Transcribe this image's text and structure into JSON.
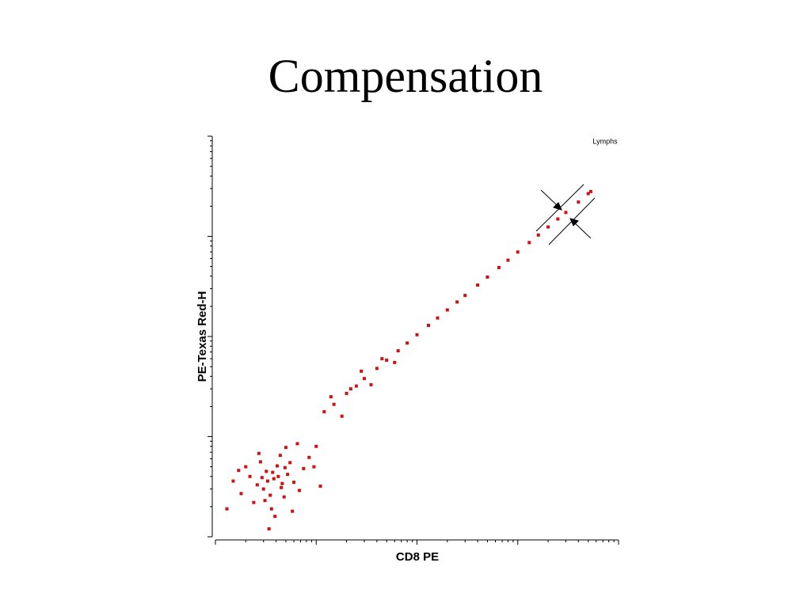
{
  "chart_data": {
    "type": "scatter",
    "title": "Compensation",
    "gate_label": "Lymphs",
    "x_label": "CD8 PE",
    "y_label": "PE-Texas Red-H",
    "xlog": true,
    "ylog": true,
    "xlim": [
      1,
      10000
    ],
    "ylim": [
      1,
      10000
    ],
    "xticks": [
      1,
      10,
      100,
      1000,
      10000
    ],
    "yticks": [
      1,
      10,
      100,
      1000,
      10000
    ],
    "color": "#d01010",
    "x": [
      3.8,
      3.2,
      4.5,
      2.6,
      5.2,
      3.5,
      4.1,
      2.2,
      6.0,
      3.0,
      4.8,
      2.8,
      5.5,
      1.8,
      7.5,
      3.6,
      4.4,
      2.4,
      6.8,
      1.5,
      8.5,
      3.9,
      5.0,
      2.0,
      9.5,
      3.3,
      4.2,
      3.7,
      2.9,
      4.6,
      3.4,
      1.3,
      11,
      6.5,
      2.7,
      10,
      1.7,
      5.8,
      3.1,
      4.9,
      12,
      15,
      20,
      25,
      30,
      40,
      50,
      65,
      80,
      100,
      130,
      160,
      200,
      250,
      300,
      400,
      500,
      650,
      800,
      1000,
      1300,
      1600,
      2000,
      2500,
      3000,
      4000,
      5000,
      5300,
      18,
      22,
      35,
      45,
      28,
      60,
      14
    ],
    "values": [
      3.8,
      4.5,
      3.1,
      3.3,
      4.2,
      2.6,
      5.1,
      4.0,
      3.5,
      3.0,
      2.5,
      5.6,
      5.5,
      2.7,
      4.8,
      1.9,
      6.5,
      2.2,
      2.9,
      3.6,
      6.2,
      1.6,
      7.8,
      5.0,
      5.0,
      3.6,
      4.0,
      4.4,
      3.9,
      3.4,
      1.2,
      1.9,
      3.2,
      8.5,
      6.8,
      8.0,
      4.6,
      1.8,
      2.3,
      4.9,
      17.7,
      21,
      27,
      32,
      38,
      48,
      58,
      72,
      86,
      104,
      129,
      153,
      184,
      221,
      257,
      326,
      392,
      488,
      578,
      697,
      866,
      1030,
      1240,
      1490,
      1730,
      2200,
      2670,
      2800,
      16,
      30,
      33,
      60,
      45,
      55,
      25
    ]
  }
}
